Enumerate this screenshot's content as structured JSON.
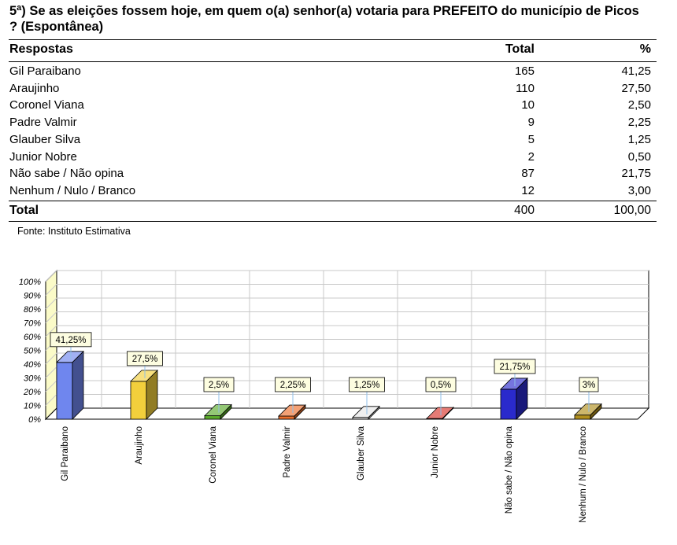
{
  "question": "5ª) Se as eleições fossem hoje, em quem o(a) senhor(a) votaria para PREFEITO do município de Picos ? (Espontânea)",
  "table": {
    "headers": {
      "label": "Respostas",
      "total": "Total",
      "pct": "%"
    },
    "rows": [
      {
        "label": "Gil Paraibano",
        "total": "165",
        "pct": "41,25"
      },
      {
        "label": "Araujinho",
        "total": "110",
        "pct": "27,50"
      },
      {
        "label": "Coronel Viana",
        "total": "10",
        "pct": "2,50"
      },
      {
        "label": "Padre Valmir",
        "total": "9",
        "pct": "2,25"
      },
      {
        "label": "Glauber Silva",
        "total": "5",
        "pct": "1,25"
      },
      {
        "label": "Junior Nobre",
        "total": "2",
        "pct": "0,50"
      },
      {
        "label": "Não sabe / Não opina",
        "total": "87",
        "pct": "21,75"
      },
      {
        "label": "Nenhum / Nulo / Branco",
        "total": "12",
        "pct": "3,00"
      }
    ],
    "footer": {
      "label": "Total",
      "total": "400",
      "pct": "100,00"
    }
  },
  "source": "Fonte: Instituto Estimativa",
  "chart_data": {
    "type": "bar",
    "categories": [
      "Gil Paraibano",
      "Araujinho",
      "Coronel Viana",
      "Padre Valmir",
      "Glauber Silva",
      "Junior Nobre",
      "Não sabe / Não opina",
      "Nenhum / Nulo / Branco"
    ],
    "values": [
      41.25,
      27.5,
      2.5,
      2.25,
      1.25,
      0.5,
      21.75,
      3
    ],
    "data_labels": [
      "41,25%",
      "27,5%",
      "2,5%",
      "2,25%",
      "1,25%",
      "0,5%",
      "21,75%",
      "3%"
    ],
    "colors": [
      "#6f86ee",
      "#f2cf3c",
      "#5aaa2a",
      "#ec6f2c",
      "#e6e6e6",
      "#d8342a",
      "#2a2acc",
      "#b08e1c"
    ],
    "y_ticks": [
      "0%",
      "10%",
      "20%",
      "30%",
      "40%",
      "50%",
      "60%",
      "70%",
      "80%",
      "90%",
      "100%"
    ],
    "ylim": [
      0,
      100
    ],
    "grid": true,
    "wall_color": "#fbfbc8",
    "style": "3d"
  }
}
